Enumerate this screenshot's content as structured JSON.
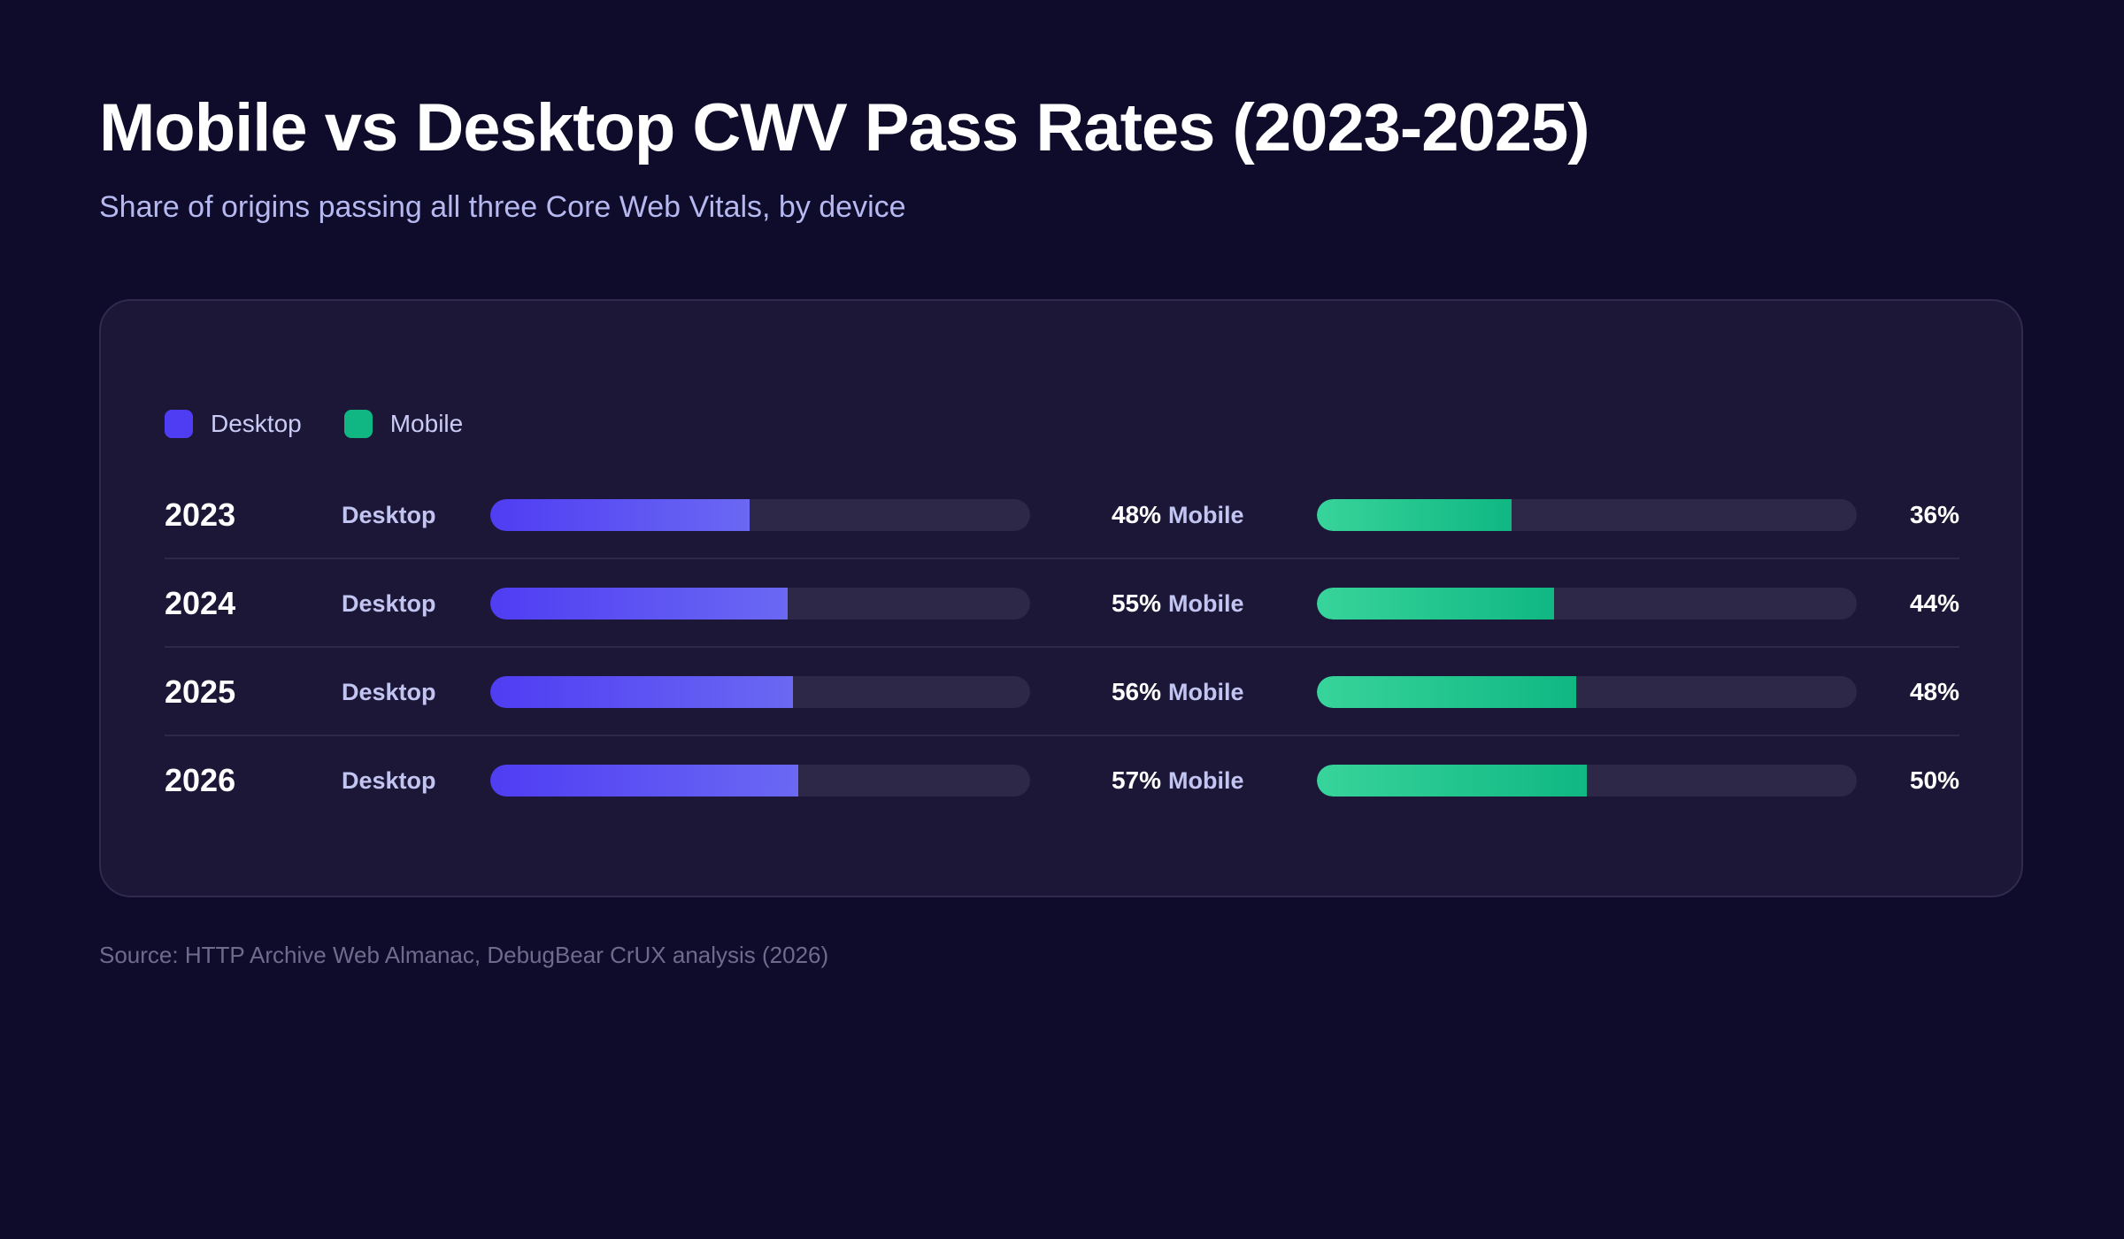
{
  "title": "Mobile vs Desktop CWV Pass Rates (2023-2025)",
  "subtitle": "Share of origins passing all three Core Web Vitals, by device",
  "source": "Source: HTTP Archive Web Almanac, DebugBear CrUX analysis (2026)",
  "colors": {
    "background": "#0f0b2b",
    "card": "#1c1736",
    "desktop": "#4f3df3",
    "mobile": "#10b782",
    "track": "#2d2847"
  },
  "chart_data": {
    "type": "bar",
    "orientation": "horizontal",
    "legend": [
      "Desktop",
      "Mobile"
    ],
    "legend_position": "top-left",
    "categories": [
      "2023",
      "2024",
      "2025",
      "2026"
    ],
    "series": [
      {
        "name": "Desktop",
        "values": [
          48,
          55,
          56,
          57
        ],
        "labels": [
          "48%",
          "55%",
          "56%",
          "57%"
        ]
      },
      {
        "name": "Mobile",
        "values": [
          36,
          44,
          48,
          50
        ],
        "labels": [
          "36%",
          "44%",
          "48%",
          "50%"
        ]
      }
    ],
    "xlim": [
      0,
      100
    ],
    "unit": "%"
  }
}
